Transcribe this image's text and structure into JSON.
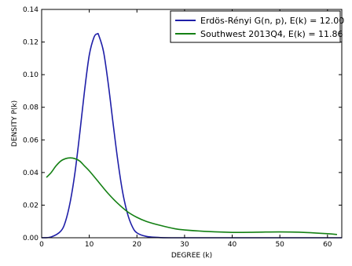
{
  "chart_data": {
    "type": "line",
    "title": "",
    "xlabel": "DEGREE (k)",
    "ylabel": "DENSITY P(k)",
    "xlim": [
      0,
      63
    ],
    "ylim": [
      0,
      0.14
    ],
    "x_ticks": [
      0,
      10,
      20,
      30,
      40,
      50,
      60
    ],
    "y_ticks": [
      0.0,
      0.02,
      0.04,
      0.06,
      0.08,
      0.1,
      0.12,
      0.14
    ],
    "x_tick_labels": [
      "0",
      "10",
      "20",
      "30",
      "40",
      "50",
      "60"
    ],
    "y_tick_labels": [
      "0.00",
      "0.02",
      "0.04",
      "0.06",
      "0.08",
      "0.10",
      "0.12",
      "0.14"
    ],
    "grid": false,
    "legend_position": "top-right",
    "series": [
      {
        "name": "Erdös-Rényi G(n, p), E(k) = 12.00",
        "color": "#1f1fa8",
        "x": [
          0,
          2,
          4,
          5,
          6,
          7,
          8,
          9,
          10,
          11,
          11.7,
          12,
          13,
          14,
          15,
          16,
          17,
          18,
          19,
          20,
          22,
          25,
          30,
          40,
          63
        ],
        "y": [
          0.0,
          0.0005,
          0.004,
          0.01,
          0.022,
          0.04,
          0.064,
          0.09,
          0.112,
          0.123,
          0.125,
          0.124,
          0.114,
          0.094,
          0.07,
          0.047,
          0.028,
          0.015,
          0.007,
          0.003,
          0.0008,
          0.0001,
          0.0,
          0.0,
          0.0
        ]
      },
      {
        "name": "Southwest 2013Q4, E(k) = 11.86",
        "color": "#148014",
        "x": [
          1,
          2,
          3,
          4,
          5,
          6,
          7,
          8,
          9,
          10,
          12,
          14,
          16,
          18,
          20,
          22,
          25,
          28,
          30,
          35,
          40,
          45,
          50,
          55,
          60,
          62
        ],
        "y": [
          0.037,
          0.04,
          0.044,
          0.047,
          0.0485,
          0.049,
          0.0485,
          0.047,
          0.044,
          0.041,
          0.034,
          0.027,
          0.021,
          0.016,
          0.0125,
          0.01,
          0.0075,
          0.0055,
          0.0048,
          0.0038,
          0.0033,
          0.0034,
          0.0036,
          0.0033,
          0.0025,
          0.002
        ]
      }
    ]
  }
}
